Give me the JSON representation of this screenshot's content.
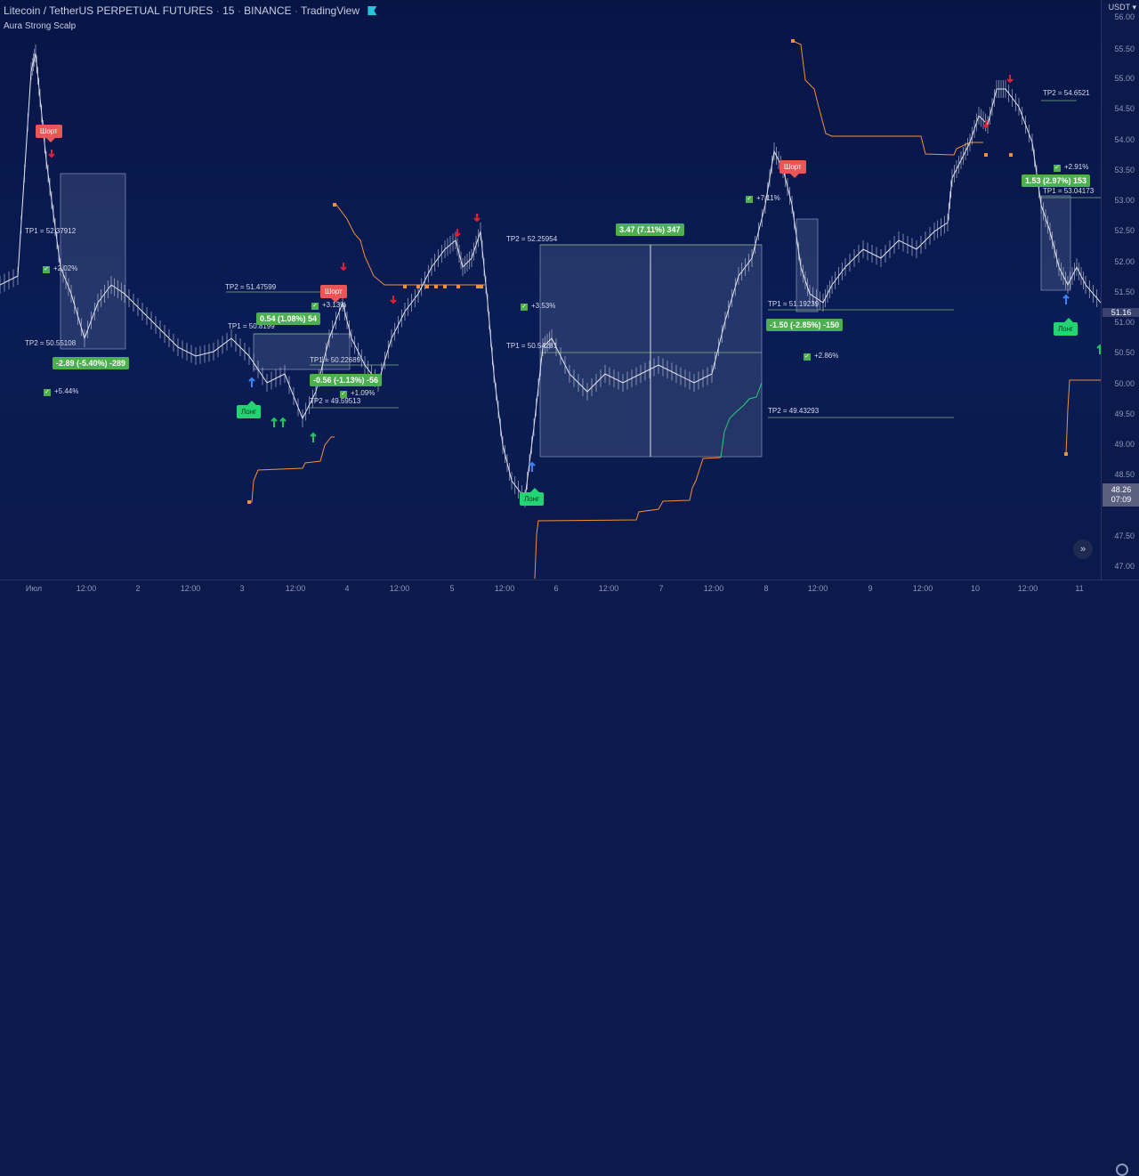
{
  "header": {
    "symbol": "Litecoin / TetherUS PERPETUAL FUTURES",
    "interval": "15",
    "exchange": "BINANCE",
    "source": "TradingView",
    "indicator": "Aura Strong Scalp"
  },
  "currency": "USDT",
  "price_ticks": [
    "56.00",
    "55.50",
    "55.00",
    "54.50",
    "54.00",
    "53.50",
    "53.00",
    "52.50",
    "52.00",
    "51.50",
    "51.00",
    "50.50",
    "50.00",
    "49.50",
    "49.00",
    "48.50",
    "47.50",
    "47.00"
  ],
  "last_price": "51.16",
  "crosshair": {
    "price": "48.26",
    "time": "07:09"
  },
  "time_ticks": [
    "Июл",
    "12:00",
    "2",
    "12:00",
    "3",
    "12:00",
    "4",
    "12:00",
    "5",
    "12:00",
    "6",
    "12:00",
    "7",
    "12:00",
    "8",
    "12:00",
    "9",
    "12:00",
    "10",
    "12:00",
    "11"
  ],
  "annotations": {
    "tp": [
      "TP1 = 52.37912",
      "TP2 = 50.55108",
      "TP2 = 51.47599",
      "TP1 = 50.8199",
      "TP1 = 50.22689",
      "TP2 = 49.59513",
      "TP2 = 52.25954",
      "TP1 = 50.54281",
      "TP1 = 51.19239",
      "TP2 = 49.43293",
      "TP2 = 54.6521",
      "TP1 = 53.04173"
    ],
    "trades": [
      "-2.89 (-5.40%) -289",
      "0.54 (1.08%) 54",
      "-0.56 (-1.13%) -56",
      "3.47 (7.11%) 347",
      "-1.50 (-2.85%) -150",
      "1.53 (2.97%) 153"
    ],
    "checks": [
      "+2.02%",
      "+5.44%",
      "+3.13%",
      "+1.09%",
      "+3.53%",
      "+7.11%",
      "+2.86%",
      "+2.91%"
    ],
    "signals": {
      "short": "Шорт",
      "long": "Лонг"
    }
  },
  "colors": {
    "bg": "#0b1a4a",
    "profit": "#4caf50",
    "short": "#e95656",
    "long": "#22d472",
    "trail": "#f0903a"
  }
}
